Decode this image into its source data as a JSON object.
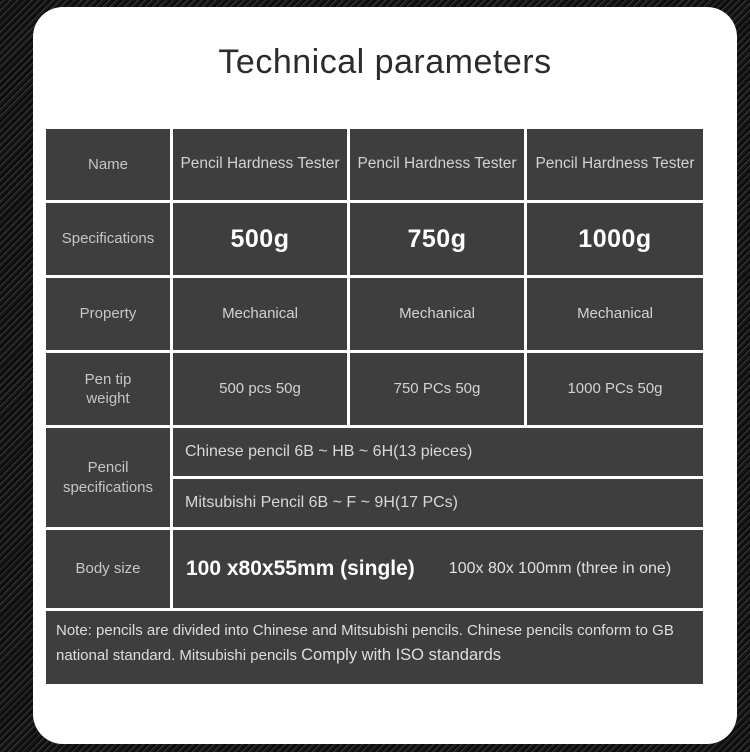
{
  "title": "Technical parameters",
  "table": {
    "rows": {
      "name": {
        "label": "Name",
        "values": [
          "Pencil Hardness Tester",
          "Pencil Hardness Tester",
          "Pencil Hardness Tester"
        ]
      },
      "specifications": {
        "label": "Specifications",
        "values": [
          "500g",
          "750g",
          "1000g"
        ]
      },
      "property": {
        "label": "Property",
        "values": [
          "Mechanical",
          "Mechanical",
          "Mechanical"
        ]
      },
      "pen_tip_weight": {
        "label": "Pen tip weight",
        "values": [
          "500 pcs 50g",
          "750 PCs 50g",
          "1000 PCs 50g"
        ]
      },
      "pencil_specifications": {
        "label": "Pencil specifications",
        "values": [
          "Chinese pencil 6B ~ HB ~ 6H(13 pieces)",
          "Mitsubishi Pencil 6B ~ F ~ 9H(17 PCs)"
        ]
      },
      "body_size": {
        "label": "Body size",
        "primary": "100 x80x55mm (single)",
        "secondary": "100x 80x 100mm (three in one)"
      }
    },
    "note": {
      "text": "Note: pencils are divided into Chinese and Mitsubishi pencils. Chinese pencils conform to GB national standard. Mitsubishi pencils ",
      "emphasis": "Comply with ISO standards"
    }
  },
  "colors": {
    "card_bg": "#ffffff",
    "cell_bg": "#3e3e3e",
    "title_text": "#2b2b2b",
    "cell_text": "#d2d2d2",
    "label_text": "#c6c6c6",
    "strong_text": "#ffffff",
    "background_dark": "#141414"
  }
}
